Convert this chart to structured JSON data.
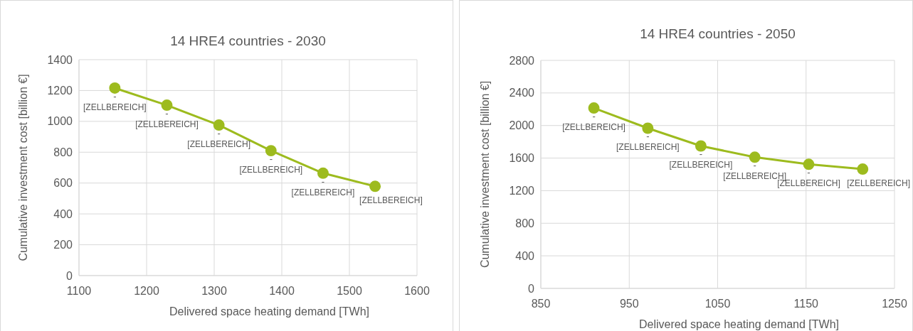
{
  "chart_data": [
    {
      "type": "line",
      "title": "14 HRE4 countries - 2030",
      "xlabel": "Delivered space heating demand [TWh]",
      "ylabel": "Cumulative investment cost  [billion €]",
      "x": [
        1153,
        1230,
        1307,
        1384,
        1461,
        1538
      ],
      "series": [
        {
          "color": "#9dbb1e",
          "values": [
            1216,
            1105,
            976,
            810,
            664,
            579
          ],
          "value_labels": [
            "[ZELLBEREICH]",
            "[ZELLBEREICH]",
            "[ZELLBEREICH]",
            "[ZELLBEREICH]",
            "[ZELLBEREICH]",
            "[ZELLBEREICH]"
          ]
        }
      ],
      "annotations": [
        {
          "text": "-",
          "x": 1153,
          "y": 1216
        },
        {
          "text": "-",
          "x": 1230,
          "y": 1105
        },
        {
          "text": "-",
          "x": 1307,
          "y": 976
        },
        {
          "text": "-",
          "x": 1384,
          "y": 810
        },
        {
          "text": "-",
          "x": 1461,
          "y": 664
        }
      ],
      "xlim": [
        1100,
        1600
      ],
      "xticks": [
        1100,
        1200,
        1300,
        1400,
        1500,
        1600
      ],
      "ylim": [
        0,
        1400
      ],
      "yticks": [
        0,
        200,
        400,
        600,
        800,
        1000,
        1200,
        1400
      ],
      "grid": true,
      "marker": "circle"
    },
    {
      "type": "line",
      "title": "14 HRE4 countries - 2050",
      "xlabel": "Delivered space heating demand [TWh]",
      "ylabel": "Cumulative investment cost  [billion  €]",
      "x": [
        910,
        971,
        1031,
        1092,
        1153,
        1214
      ],
      "series": [
        {
          "color": "#9dbb1e",
          "values": [
            2215,
            1967,
            1749,
            1611,
            1524,
            1465
          ],
          "value_labels": [
            "[ZELLBEREICH]",
            "[ZELLBEREICH]",
            "[ZELLBEREICH]",
            "[ZELLBEREICH]",
            "[ZELLBEREICH]",
            "[ZELLBEREICH]"
          ]
        }
      ],
      "annotations": [
        {
          "text": "-",
          "x": 910,
          "y": 2215
        },
        {
          "text": "-",
          "x": 971,
          "y": 1967
        },
        {
          "text": "-",
          "x": 1031,
          "y": 1749
        },
        {
          "text": "-",
          "x": 1092,
          "y": 1611
        },
        {
          "text": "-",
          "x": 1153,
          "y": 1524
        }
      ],
      "xlim": [
        850,
        1250
      ],
      "xticks": [
        850,
        950,
        1050,
        1150,
        1250
      ],
      "ylim": [
        0,
        2800
      ],
      "yticks": [
        0,
        400,
        800,
        1200,
        1600,
        2000,
        2400,
        2800
      ],
      "grid": true,
      "marker": "circle"
    }
  ]
}
